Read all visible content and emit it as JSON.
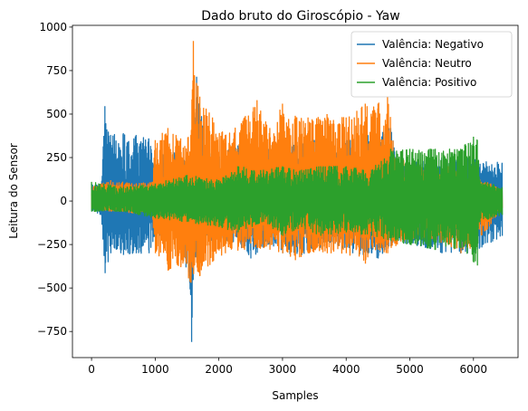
{
  "chart_data": {
    "type": "line",
    "title": "Dado bruto do Giroscópio - Yaw",
    "xlabel": "Samples",
    "ylabel": "Leitura do Sensor",
    "xlim": [
      -300,
      6700
    ],
    "ylim": [
      -900,
      1010
    ],
    "x_ticks": [
      0,
      1000,
      2000,
      3000,
      4000,
      5000,
      6000
    ],
    "y_ticks": [
      -750,
      -500,
      -250,
      0,
      250,
      500,
      750,
      1000
    ],
    "grid": false,
    "legend": "top-right",
    "series": [
      {
        "name": "Valência: Negativo",
        "color": "#1f77b4",
        "x_range": [
          0,
          6450
        ],
        "envelope": [
          [
            0,
            100,
            -60
          ],
          [
            150,
            100,
            -80
          ],
          [
            210,
            545,
            -415
          ],
          [
            300,
            380,
            -300
          ],
          [
            500,
            390,
            -310
          ],
          [
            700,
            380,
            -300
          ],
          [
            900,
            360,
            -300
          ],
          [
            1000,
            200,
            -200
          ],
          [
            1200,
            320,
            -200
          ],
          [
            1400,
            260,
            -250
          ],
          [
            1540,
            250,
            -470
          ],
          [
            1570,
            280,
            -810
          ],
          [
            1620,
            370,
            -300
          ],
          [
            1650,
            715,
            -350
          ],
          [
            1800,
            300,
            -250
          ],
          [
            2000,
            280,
            -220
          ],
          [
            2300,
            320,
            -250
          ],
          [
            2500,
            330,
            -330
          ],
          [
            2800,
            320,
            -250
          ],
          [
            3000,
            350,
            -300
          ],
          [
            3300,
            330,
            -310
          ],
          [
            3500,
            350,
            -280
          ],
          [
            3800,
            330,
            -250
          ],
          [
            4100,
            360,
            -300
          ],
          [
            4500,
            400,
            -330
          ],
          [
            4700,
            420,
            -260
          ],
          [
            4800,
            250,
            -230
          ],
          [
            5000,
            220,
            -250
          ],
          [
            5500,
            250,
            -300
          ],
          [
            6000,
            250,
            -300
          ],
          [
            6450,
            220,
            -200
          ]
        ]
      },
      {
        "name": "Valência: Neutro",
        "color": "#ff7f0e",
        "x_range": [
          0,
          6450
        ],
        "envelope": [
          [
            0,
            80,
            -40
          ],
          [
            300,
            120,
            -60
          ],
          [
            700,
            100,
            -70
          ],
          [
            950,
            110,
            -60
          ],
          [
            1000,
            350,
            -300
          ],
          [
            1200,
            420,
            -400
          ],
          [
            1400,
            360,
            -380
          ],
          [
            1560,
            380,
            -470
          ],
          [
            1600,
            920,
            -420
          ],
          [
            1700,
            600,
            -430
          ],
          [
            1900,
            480,
            -350
          ],
          [
            2100,
            380,
            -300
          ],
          [
            2400,
            480,
            -280
          ],
          [
            2600,
            580,
            -270
          ],
          [
            2800,
            420,
            -280
          ],
          [
            3000,
            560,
            -300
          ],
          [
            3200,
            490,
            -340
          ],
          [
            3400,
            480,
            -300
          ],
          [
            3700,
            500,
            -300
          ],
          [
            4000,
            480,
            -300
          ],
          [
            4300,
            560,
            -360
          ],
          [
            4500,
            560,
            -280
          ],
          [
            4650,
            600,
            -300
          ],
          [
            4800,
            250,
            -250
          ],
          [
            5000,
            220,
            -220
          ],
          [
            5300,
            200,
            -220
          ],
          [
            5600,
            200,
            -250
          ],
          [
            5800,
            160,
            -300
          ],
          [
            6000,
            160,
            -280
          ],
          [
            6450,
            60,
            -40
          ]
        ]
      },
      {
        "name": "Valência: Positivo",
        "color": "#2ca02c",
        "x_range": [
          0,
          6450
        ],
        "envelope": [
          [
            0,
            110,
            -60
          ],
          [
            500,
            80,
            -60
          ],
          [
            1000,
            100,
            -100
          ],
          [
            1500,
            150,
            -120
          ],
          [
            2000,
            120,
            -150
          ],
          [
            2300,
            200,
            -180
          ],
          [
            2700,
            180,
            -120
          ],
          [
            3000,
            200,
            -200
          ],
          [
            3300,
            180,
            -150
          ],
          [
            3600,
            200,
            -200
          ],
          [
            4000,
            200,
            -180
          ],
          [
            4400,
            180,
            -200
          ],
          [
            4700,
            300,
            -230
          ],
          [
            5000,
            300,
            -250
          ],
          [
            5400,
            300,
            -280
          ],
          [
            5800,
            300,
            -270
          ],
          [
            6000,
            370,
            -350
          ],
          [
            6060,
            350,
            -370
          ],
          [
            6100,
            120,
            -120
          ],
          [
            6450,
            80,
            -80
          ]
        ]
      }
    ]
  }
}
